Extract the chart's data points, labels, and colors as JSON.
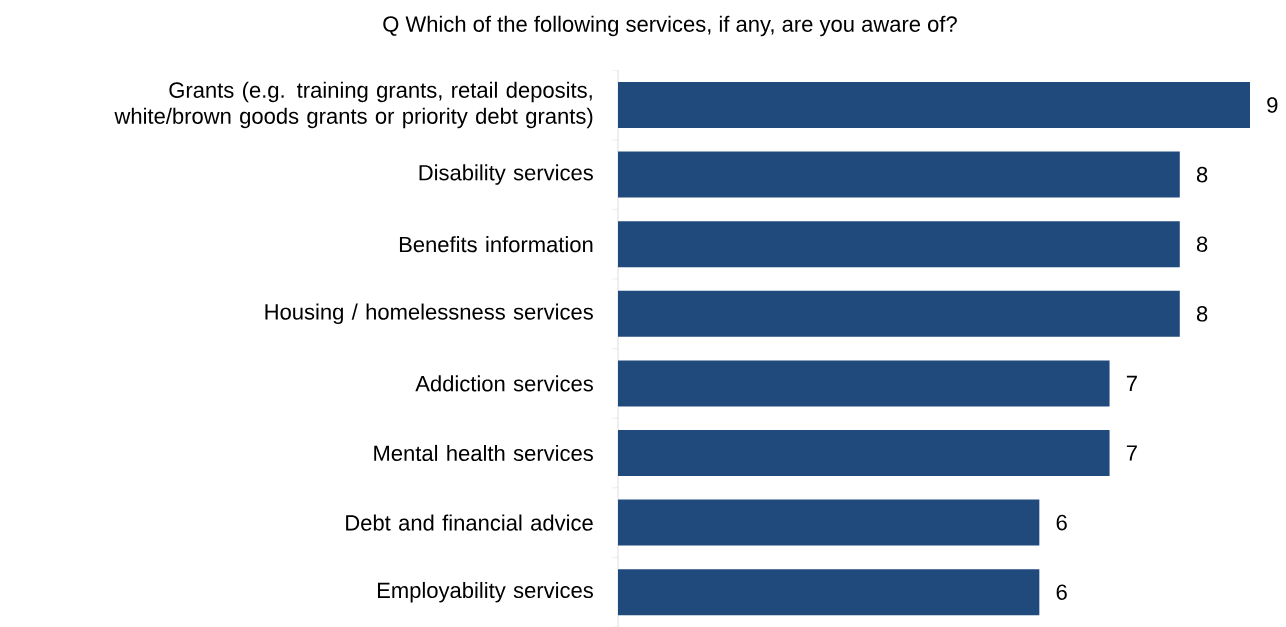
{
  "chart_data": {
    "type": "bar",
    "orientation": "horizontal",
    "title": "Q Which of the following services, if any, are you aware of?",
    "categories": [
      "Grants (e.g. training grants, retail deposits, white/brown goods grants or priority debt grants)",
      "Disability services",
      "Benefits information",
      "Housing / homelessness services",
      "Addiction services",
      "Mental health services",
      "Debt and financial advice",
      "Employability services"
    ],
    "values": [
      9,
      8,
      8,
      8,
      7,
      7,
      6,
      6
    ],
    "value_labels": [
      "9",
      "8",
      "8",
      "8",
      "7",
      "7",
      "6",
      "6"
    ],
    "color": "#214a7c"
  }
}
